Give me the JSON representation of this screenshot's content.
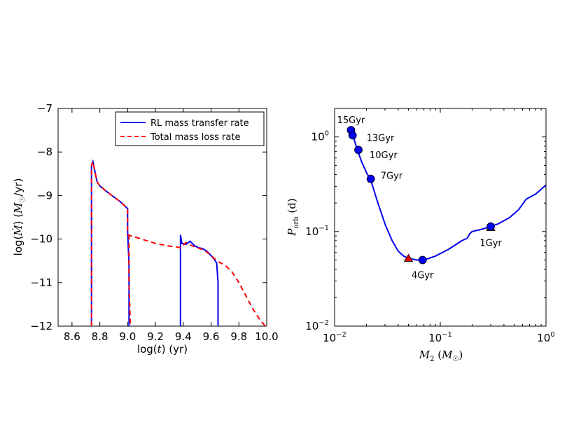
{
  "chart_data": [
    {
      "type": "line",
      "xlabel": "log(t) (yr)",
      "ylabel": "log(Ṁ) (M☉/yr)",
      "xlim": [
        8.5,
        10.0
      ],
      "ylim": [
        -12,
        -7
      ],
      "xticks": [
        8.6,
        8.8,
        9.0,
        9.2,
        9.4,
        9.6,
        9.8,
        10.0
      ],
      "xtick_labels": [
        "8.6",
        "8.8",
        "9.0",
        "9.2",
        "9.4",
        "9.6",
        "9.8",
        "10.0"
      ],
      "yticks": [
        -12,
        -11,
        -10,
        -9,
        -8,
        -7
      ],
      "ytick_labels": [
        "−12",
        "−11",
        "−10",
        "−9",
        "−8",
        "−7"
      ],
      "legend": [
        {
          "label": "RL mass transfer rate",
          "color": "#0000ee",
          "style": "solid"
        },
        {
          "label": "Total mass loss rate",
          "color": "#ff0000",
          "style": "dashed"
        }
      ],
      "legend_position": "upper-right",
      "series": [
        {
          "name": "RL mass transfer rate",
          "color": "#0000ee",
          "x": [
            8.74,
            8.74,
            8.75,
            8.76,
            8.78,
            8.8,
            8.85,
            8.9,
            8.95,
            9.0,
            9.0,
            9.01,
            9.01,
            null,
            9.38,
            9.38,
            9.39,
            9.42,
            9.45,
            9.48,
            9.51,
            9.54,
            9.57,
            9.6,
            9.62,
            9.64,
            9.65,
            9.65
          ],
          "y": [
            -12,
            -8.3,
            -8.22,
            -8.38,
            -8.68,
            -8.78,
            -8.91,
            -9.03,
            -9.15,
            -9.3,
            -9.8,
            -10.6,
            -12,
            null,
            -12,
            -9.9,
            -10.1,
            -10.12,
            -10.05,
            -10.15,
            -10.2,
            -10.22,
            -10.28,
            -10.38,
            -10.45,
            -10.55,
            -11.0,
            -12
          ]
        },
        {
          "name": "Total mass loss rate",
          "color": "#ff0000",
          "x": [
            8.74,
            8.74,
            8.75,
            8.76,
            8.78,
            8.8,
            8.85,
            8.9,
            8.95,
            9.0,
            9.0,
            9.05,
            9.1,
            9.15,
            9.2,
            9.25,
            9.3,
            9.35,
            9.38,
            9.42,
            9.46,
            9.5,
            9.55,
            9.6,
            9.65,
            9.7,
            9.75,
            9.8,
            9.85,
            9.9,
            9.95,
            9.99
          ],
          "y": [
            -12,
            -8.3,
            -8.22,
            -8.38,
            -8.68,
            -8.78,
            -8.91,
            -9.03,
            -9.15,
            -9.3,
            -9.9,
            -9.95,
            -10.0,
            -10.05,
            -10.1,
            -10.13,
            -10.16,
            -10.18,
            -10.2,
            -10.08,
            -10.15,
            -10.2,
            -10.25,
            -10.38,
            -10.52,
            -10.6,
            -10.75,
            -11.0,
            -11.3,
            -11.6,
            -11.85,
            -12
          ]
        },
        {
          "name": "Total mass loss rate (drop)",
          "color": "#ff0000",
          "x": [
            9.01,
            9.01,
            9.02
          ],
          "y": [
            -9.9,
            -11.0,
            -12
          ]
        }
      ]
    },
    {
      "type": "line",
      "xscale": "log",
      "yscale": "log",
      "xlabel": "M2 (M☉)",
      "ylabel": "Porb (d)",
      "xlim": [
        0.01,
        1
      ],
      "ylim": [
        0.01,
        2
      ],
      "xticks": [
        0.01,
        0.1,
        1
      ],
      "xtick_labels": [
        "10",
        "10",
        "10"
      ],
      "xtick_exponents": [
        "−2",
        "−1",
        "0"
      ],
      "yticks": [
        0.01,
        0.1,
        1
      ],
      "ytick_labels": [
        "10",
        "10",
        "10"
      ],
      "ytick_exponents": [
        "−2",
        "−1",
        "0"
      ],
      "series": [
        {
          "name": "evolution track",
          "color": "#0000ee",
          "x": [
            0.0143,
            0.0148,
            0.0155,
            0.0165,
            0.018,
            0.02,
            0.022,
            0.025,
            0.03,
            0.035,
            0.04,
            0.045,
            0.05,
            0.06,
            0.07,
            0.09,
            0.12,
            0.16,
            0.18,
            0.19,
            0.2,
            0.24,
            0.28,
            0.3,
            0.35,
            0.45,
            0.55,
            0.65,
            0.8,
            1.0
          ],
          "y": [
            1.2,
            1.05,
            0.9,
            0.72,
            0.55,
            0.42,
            0.35,
            0.22,
            0.12,
            0.08,
            0.062,
            0.055,
            0.052,
            0.05,
            0.05,
            0.055,
            0.065,
            0.08,
            0.085,
            0.095,
            0.1,
            0.105,
            0.11,
            0.113,
            0.12,
            0.14,
            0.17,
            0.22,
            0.25,
            0.31
          ]
        }
      ],
      "markers": {
        "circles": [
          {
            "x": 0.0143,
            "y": 1.18,
            "label": "15Gyr"
          },
          {
            "x": 0.0148,
            "y": 1.04,
            "label": "13Gyr"
          },
          {
            "x": 0.0168,
            "y": 0.73,
            "label": "10Gyr"
          },
          {
            "x": 0.022,
            "y": 0.36,
            "label": "7Gyr"
          },
          {
            "x": 0.068,
            "y": 0.05,
            "label": "4Gyr"
          },
          {
            "x": 0.3,
            "y": 0.113,
            "label": "1Gyr"
          }
        ],
        "triangles": [
          {
            "x": 0.05,
            "y": 0.052
          },
          {
            "x": 0.3,
            "y": 0.11
          }
        ]
      },
      "marker_colors": {
        "circle": "#0000ee",
        "triangle": "#ee0000"
      }
    }
  ]
}
